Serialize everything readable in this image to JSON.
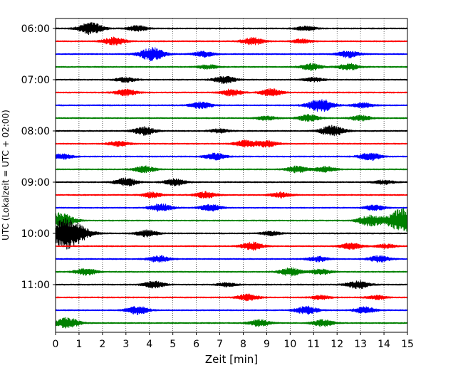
{
  "chart_data": {
    "type": "line",
    "title": "",
    "xlabel": "Zeit  [min]",
    "ylabel": "UTC (Lokalzeit = UTC + 02:00)",
    "xlim": [
      0,
      15
    ],
    "x_ticks": [
      0,
      1,
      2,
      3,
      4,
      5,
      6,
      7,
      8,
      9,
      10,
      11,
      12,
      13,
      14,
      15
    ],
    "x_tick_labels": [
      "0",
      "1",
      "2",
      "3",
      "4",
      "5",
      "6",
      "7",
      "8",
      "9",
      "10",
      "11",
      "12",
      "13",
      "14",
      "15"
    ],
    "y_tick_labels": [
      {
        "label": "06:00",
        "trace_index": 0
      },
      {
        "label": "07:00",
        "trace_index": 4
      },
      {
        "label": "08:00",
        "trace_index": 8
      },
      {
        "label": "09:00",
        "trace_index": 12
      },
      {
        "label": "10:00",
        "trace_index": 16
      },
      {
        "label": "11:00",
        "trace_index": 20
      }
    ],
    "grid": "vertical dotted at each minute",
    "minutes_per_trace": 15,
    "series": [
      {
        "start": "06:00",
        "color": "#000000",
        "events": [
          [
            1.5,
            0.9
          ],
          [
            3.5,
            0.4
          ],
          [
            10.7,
            0.35
          ]
        ]
      },
      {
        "start": "06:15",
        "color": "#ff0000",
        "events": [
          [
            2.5,
            0.6
          ],
          [
            8.4,
            0.55
          ],
          [
            10.5,
            0.3
          ]
        ]
      },
      {
        "start": "06:30",
        "color": "#0000ff",
        "events": [
          [
            4.1,
            1.0
          ],
          [
            6.3,
            0.4
          ],
          [
            12.5,
            0.55
          ]
        ]
      },
      {
        "start": "06:45",
        "color": "#008000",
        "events": [
          [
            6.5,
            0.3
          ],
          [
            10.9,
            0.5
          ],
          [
            12.5,
            0.5
          ]
        ]
      },
      {
        "start": "07:00",
        "color": "#000000",
        "events": [
          [
            3.0,
            0.35
          ],
          [
            7.2,
            0.55
          ],
          [
            11.0,
            0.3
          ]
        ]
      },
      {
        "start": "07:15",
        "color": "#ff0000",
        "events": [
          [
            3.0,
            0.5
          ],
          [
            7.5,
            0.5
          ],
          [
            9.2,
            0.55
          ]
        ]
      },
      {
        "start": "07:30",
        "color": "#0000ff",
        "events": [
          [
            6.2,
            0.5
          ],
          [
            11.3,
            1.0
          ],
          [
            13.1,
            0.4
          ]
        ]
      },
      {
        "start": "07:45",
        "color": "#008000",
        "events": [
          [
            9.0,
            0.3
          ],
          [
            10.8,
            0.5
          ],
          [
            13.0,
            0.4
          ]
        ]
      },
      {
        "start": "08:00",
        "color": "#000000",
        "events": [
          [
            3.8,
            0.6
          ],
          [
            7.0,
            0.3
          ],
          [
            11.8,
            0.8
          ]
        ]
      },
      {
        "start": "08:15",
        "color": "#ff0000",
        "events": [
          [
            2.7,
            0.4
          ],
          [
            8.1,
            0.5
          ],
          [
            9.0,
            0.5
          ]
        ]
      },
      {
        "start": "08:30",
        "color": "#0000ff",
        "events": [
          [
            0.3,
            0.4
          ],
          [
            6.8,
            0.5
          ],
          [
            13.4,
            0.55
          ]
        ]
      },
      {
        "start": "08:45",
        "color": "#008000",
        "events": [
          [
            3.8,
            0.5
          ],
          [
            10.3,
            0.5
          ],
          [
            11.5,
            0.4
          ]
        ]
      },
      {
        "start": "09:00",
        "color": "#000000",
        "events": [
          [
            3.0,
            0.6
          ],
          [
            5.1,
            0.5
          ],
          [
            14.0,
            0.3
          ]
        ]
      },
      {
        "start": "09:15",
        "color": "#ff0000",
        "events": [
          [
            4.1,
            0.4
          ],
          [
            6.4,
            0.5
          ],
          [
            9.6,
            0.4
          ]
        ]
      },
      {
        "start": "09:30",
        "color": "#0000ff",
        "events": [
          [
            4.5,
            0.6
          ],
          [
            6.6,
            0.5
          ],
          [
            13.6,
            0.4
          ]
        ]
      },
      {
        "start": "09:45",
        "color": "#008000",
        "events": [
          [
            0.2,
            1.2
          ],
          [
            13.4,
            0.8
          ],
          [
            14.8,
            1.8
          ]
        ]
      },
      {
        "start": "10:00",
        "color": "#000000",
        "events": [
          [
            0.5,
            2.4
          ],
          [
            3.9,
            0.5
          ],
          [
            9.2,
            0.3
          ]
        ]
      },
      {
        "start": "10:15",
        "color": "#ff0000",
        "events": [
          [
            8.4,
            0.6
          ],
          [
            12.6,
            0.5
          ],
          [
            14.1,
            0.3
          ]
        ]
      },
      {
        "start": "10:30",
        "color": "#0000ff",
        "events": [
          [
            4.4,
            0.5
          ],
          [
            11.2,
            0.4
          ],
          [
            13.8,
            0.5
          ]
        ]
      },
      {
        "start": "10:45",
        "color": "#008000",
        "events": [
          [
            1.3,
            0.5
          ],
          [
            10.0,
            0.6
          ],
          [
            11.3,
            0.4
          ]
        ]
      },
      {
        "start": "11:00",
        "color": "#000000",
        "events": [
          [
            4.2,
            0.5
          ],
          [
            7.3,
            0.3
          ],
          [
            12.9,
            0.6
          ]
        ]
      },
      {
        "start": "11:15",
        "color": "#ff0000",
        "events": [
          [
            8.2,
            0.5
          ],
          [
            11.3,
            0.3
          ],
          [
            13.7,
            0.3
          ]
        ]
      },
      {
        "start": "11:30",
        "color": "#0000ff",
        "events": [
          [
            3.5,
            0.6
          ],
          [
            10.7,
            0.6
          ],
          [
            13.2,
            0.5
          ]
        ]
      },
      {
        "start": "11:45",
        "color": "#008000",
        "events": [
          [
            0.5,
            0.8
          ],
          [
            8.7,
            0.5
          ],
          [
            11.4,
            0.5
          ]
        ]
      }
    ]
  }
}
